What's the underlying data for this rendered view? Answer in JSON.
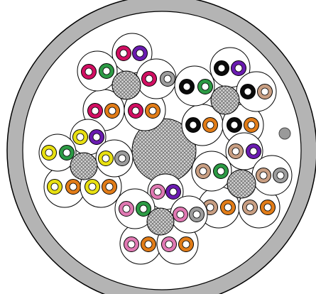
{
  "colors": {
    "sheath": "#b4b4b4",
    "outline": "#000000",
    "interior": "#ffffff",
    "filler": "#d6d6d6",
    "drain_wire": "#9a9a9a",
    "conductor_core": "#ffffff"
  },
  "insulation_colors": {
    "magenta": "#d10f62",
    "violet": "#6a1bb0",
    "green": "#2c9a44",
    "gray": "#9d9d9d",
    "black": "#0b0b0b",
    "orange": "#e17c18",
    "yellow": "#e8e012",
    "brown": "#b4682a",
    "tan": "#c99f83",
    "pink": "#e079b3"
  },
  "cable": {
    "drain_wire_count": 1,
    "central_filler_count": 1,
    "groups": [
      {
        "id": "group-magenta",
        "twisted_pairs": [
          [
            "magenta",
            "violet"
          ],
          [
            "magenta",
            "green"
          ],
          [
            "magenta",
            "gray"
          ]
        ],
        "pairs": [
          [
            "magenta",
            "orange"
          ],
          [
            "magenta",
            "orange"
          ]
        ]
      },
      {
        "id": "group-black",
        "twisted_pairs": [
          [
            "black",
            "violet"
          ],
          [
            "black",
            "green"
          ],
          [
            "black",
            "tan"
          ]
        ],
        "pairs": [
          [
            "black",
            "orange"
          ],
          [
            "black",
            "orange"
          ]
        ]
      },
      {
        "id": "group-yellow",
        "twisted_pairs": [
          [
            "yellow",
            "violet"
          ],
          [
            "yellow",
            "green"
          ],
          [
            "yellow",
            "gray"
          ]
        ],
        "pairs": [
          [
            "yellow",
            "orange"
          ],
          [
            "yellow",
            "orange"
          ]
        ]
      },
      {
        "id": "group-tan",
        "twisted_pairs": [
          [
            "tan",
            "violet"
          ],
          [
            "tan",
            "green"
          ],
          [
            "tan",
            "gray"
          ]
        ],
        "pairs": [
          [
            "tan",
            "orange"
          ],
          [
            "tan",
            "orange"
          ]
        ]
      },
      {
        "id": "group-pink",
        "twisted_pairs": [
          [
            "pink",
            "violet"
          ],
          [
            "pink",
            "green"
          ],
          [
            "pink",
            "gray"
          ]
        ],
        "pairs": [
          [
            "pink",
            "orange"
          ],
          [
            "pink",
            "orange"
          ]
        ]
      }
    ]
  }
}
